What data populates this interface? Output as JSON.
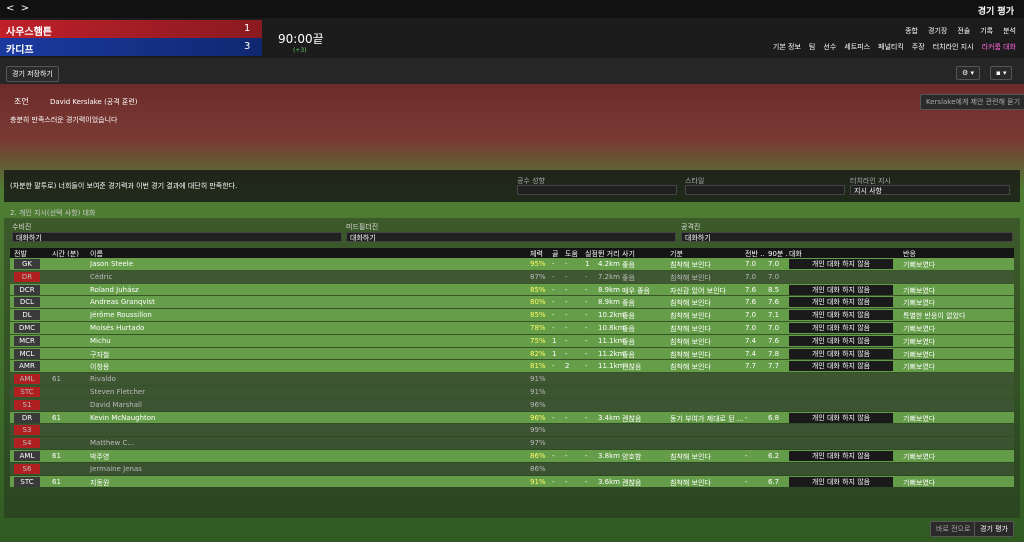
{
  "header": {
    "title": "경기 평가"
  },
  "score": {
    "home": "사우스햄튼",
    "home_goals": "1",
    "away": "카디프",
    "away_goals": "3",
    "time": "90:00끝",
    "extra": "(+3)"
  },
  "menu": {
    "top": [
      "종합",
      "경기장",
      "전술",
      "기록",
      "분석"
    ],
    "sub": [
      "기본 정보",
      "팀",
      "선수",
      "세트피스",
      "페널티킥",
      "주장",
      "터치라인 지시",
      "라커룸 대화"
    ]
  },
  "toolbar": {
    "save": "경기 저장하기"
  },
  "advice": {
    "label": "조언",
    "person": "David Kerslake (공격 훈련)",
    "text": "충분히 만족스러운 경기력이었습니다",
    "ask": "Kerslake에게 제안 관련해 묻기"
  },
  "team_talk": {
    "text": "(차분한 말투로) 너희들이 보여준 경기력과 이번 경기 결과에 대단히 만족한다.",
    "options": [
      {
        "label": "공수 성향",
        "value": ""
      },
      {
        "label": "스타일",
        "value": ""
      },
      {
        "label": "터치라인 지시",
        "value": "지시 사항"
      }
    ]
  },
  "individual": {
    "title": "2. 개인 지시(선택 사항) 대화",
    "groups": [
      {
        "label": "수비진",
        "value": "대화하기"
      },
      {
        "label": "미드필더진",
        "value": "대화하기"
      },
      {
        "label": "공격진",
        "value": "대화하기"
      }
    ]
  },
  "table": {
    "columns": [
      "전발",
      "시간 (분)",
      "이름",
      "체력",
      "골",
      "도움",
      "실점",
      "뛴 거리",
      "사기",
      "기분",
      "전반 ...",
      "90분 ...",
      "대화",
      "반응"
    ],
    "rows": [
      {
        "active": true,
        "pos_color": "#3a3a3a",
        "cells": [
          "GK",
          "",
          "Jason Steele",
          "95%",
          "-",
          "-",
          "1",
          "4.2km",
          "좋음",
          "침착해 보인다",
          "7.0",
          "7.0",
          "개인 대화 하지 않음",
          "기뻐보였다"
        ]
      },
      {
        "active": false,
        "pos_color": "#b02020",
        "cells": [
          "DR",
          "",
          "Cédric",
          "87%",
          "-",
          "-",
          "-",
          "7.2km",
          "좋음",
          "침착해 보인다",
          "7.0",
          "7.0",
          "",
          ""
        ]
      },
      {
        "active": true,
        "pos_color": "#3a3a3a",
        "cells": [
          "DCR",
          "",
          "Roland Juhász",
          "85%",
          "-",
          "-",
          "-",
          "8.9km",
          "매우 좋음",
          "자신감 있어 보인다",
          "7.6",
          "8.5",
          "개인 대화 하지 않음",
          "기뻐보였다"
        ]
      },
      {
        "active": true,
        "pos_color": "#3a3a3a",
        "cells": [
          "DCL",
          "",
          "Andreas Granqvist",
          "80%",
          "-",
          "-",
          "-",
          "8.9km",
          "좋음",
          "침착해 보인다",
          "7.6",
          "7.6",
          "개인 대화 하지 않음",
          "기뻐보였다"
        ]
      },
      {
        "active": true,
        "pos_color": "#3a3a3a",
        "cells": [
          "DL",
          "",
          "Jérôme Roussillon",
          "85%",
          "-",
          "-",
          "-",
          "10.2km",
          "좋음",
          "침착해 보인다",
          "7.0",
          "7.1",
          "개인 대화 하지 않음",
          "특별한 반응이 없었다"
        ]
      },
      {
        "active": true,
        "pos_color": "#3a3a3a",
        "cells": [
          "DMC",
          "",
          "Moisés Hurtado",
          "78%",
          "-",
          "-",
          "-",
          "10.8km",
          "좋음",
          "침착해 보인다",
          "7.0",
          "7.0",
          "개인 대화 하지 않음",
          "기뻐보였다"
        ]
      },
      {
        "active": true,
        "pos_color": "#3a3a3a",
        "cells": [
          "MCR",
          "",
          "Michu",
          "75%",
          "1",
          "-",
          "-",
          "11.1km",
          "좋음",
          "침착해 보인다",
          "7.4",
          "7.6",
          "개인 대화 하지 않음",
          "기뻐보였다"
        ]
      },
      {
        "active": true,
        "pos_color": "#3a3a3a",
        "cells": [
          "MCL",
          "",
          "구자철",
          "82%",
          "1",
          "-",
          "-",
          "11.2km",
          "좋음",
          "침착해 보인다",
          "7.4",
          "7.8",
          "개인 대화 하지 않음",
          "기뻐보였다"
        ]
      },
      {
        "active": true,
        "pos_color": "#3a3a3a",
        "cells": [
          "AMR",
          "",
          "이청용",
          "81%",
          "-",
          "2",
          "-",
          "11.1km",
          "괜찮음",
          "침착해 보인다",
          "7.7",
          "7.7",
          "개인 대화 하지 않음",
          "기뻐보였다"
        ]
      },
      {
        "active": false,
        "pos_color": "#b02020",
        "cells": [
          "AML",
          "61",
          "Rivaldo",
          "91%",
          "",
          "",
          "",
          "",
          "",
          "",
          "",
          "",
          "",
          ""
        ]
      },
      {
        "active": false,
        "pos_color": "#b02020",
        "cells": [
          "STC",
          "",
          "Steven Fletcher",
          "91%",
          "",
          "",
          "",
          "",
          "",
          "",
          "",
          "",
          "",
          ""
        ]
      },
      {
        "active": false,
        "pos_color": "#b02020",
        "cells": [
          "S1",
          "",
          "David Marshall",
          "96%",
          "",
          "",
          "",
          "",
          "",
          "",
          "",
          "",
          "",
          ""
        ]
      },
      {
        "active": true,
        "pos_color": "#3a3a3a",
        "cells": [
          "DR",
          "61",
          "Kevin McNaughton",
          "96%",
          "-",
          "-",
          "-",
          "3.4km",
          "괜찮음",
          "동기 부여가 제대로 된 ...",
          "-",
          "6.8",
          "개인 대화 하지 않음",
          "기뻐보였다"
        ]
      },
      {
        "active": false,
        "pos_color": "#b02020",
        "cells": [
          "S3",
          "",
          "",
          "99%",
          "",
          "",
          "",
          "",
          "",
          "",
          "",
          "",
          "",
          ""
        ]
      },
      {
        "active": false,
        "pos_color": "#b02020",
        "cells": [
          "S4",
          "",
          "Matthew C...",
          "97%",
          "",
          "",
          "",
          "",
          "",
          "",
          "",
          "",
          "",
          ""
        ]
      },
      {
        "active": true,
        "pos_color": "#3a3a3a",
        "cells": [
          "AML",
          "61",
          "박주영",
          "86%",
          "-",
          "-",
          "-",
          "3.8km",
          "양호함",
          "침착해 보인다",
          "-",
          "6.2",
          "개인 대화 하지 않음",
          "기뻐보였다"
        ]
      },
      {
        "active": false,
        "pos_color": "#b02020",
        "cells": [
          "S6",
          "",
          "Jermaine Jenas",
          "86%",
          "",
          "",
          "",
          "",
          "",
          "",
          "",
          "",
          "",
          ""
        ]
      },
      {
        "active": true,
        "pos_color": "#3a3a3a",
        "cells": [
          "STC",
          "61",
          "지동원",
          "91%",
          "-",
          "-",
          "-",
          "3.6km",
          "괜찮음",
          "침착해 보인다",
          "-",
          "6.7",
          "개인 대화 하지 않음",
          "기뻐보였다"
        ]
      }
    ]
  },
  "footer": {
    "back": "바로 전으로",
    "next": "경기 평가"
  }
}
